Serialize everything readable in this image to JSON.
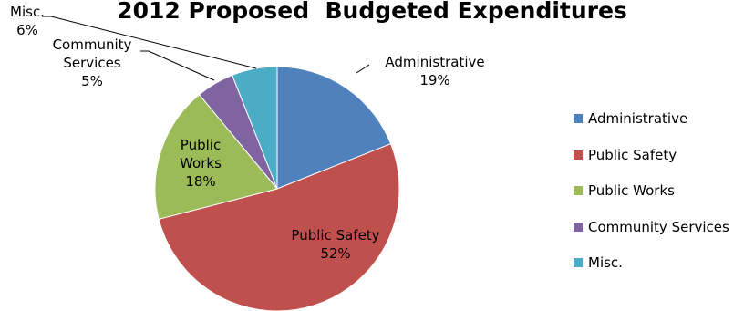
{
  "chart_data": {
    "type": "pie",
    "title": "2012 Proposed  Budgeted Expenditures",
    "slices": [
      {
        "name": "Administrative",
        "value": 19,
        "label_lines": [
          "Administrative",
          "19%"
        ],
        "color": "#4f81bd"
      },
      {
        "name": "Public Safety",
        "value": 52,
        "label_lines": [
          "Public Safety",
          "52%"
        ],
        "color": "#c0504d"
      },
      {
        "name": "Public Works",
        "value": 18,
        "label_lines": [
          "Public",
          "Works",
          "18%"
        ],
        "color": "#9bbb59"
      },
      {
        "name": "Community Services",
        "value": 5,
        "label_lines": [
          "Community",
          "Services",
          "5%"
        ],
        "color": "#8064a2"
      },
      {
        "name": "Misc.",
        "value": 6,
        "label_lines": [
          "Misc.",
          "6%"
        ],
        "color": "#4bacc6"
      }
    ],
    "legend": {
      "position": "right",
      "entries": [
        "Administrative",
        "Public Safety",
        "Public Works",
        "Community Services",
        "Misc."
      ]
    }
  }
}
